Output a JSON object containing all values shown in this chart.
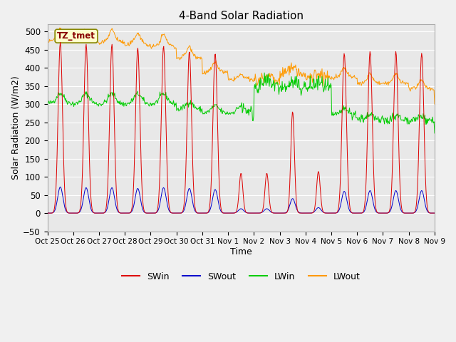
{
  "title": "4-Band Solar Radiation",
  "xlabel": "Time",
  "ylabel": "Solar Radiation (W/m2)",
  "ylim": [
    -50,
    520
  ],
  "xlim": [
    0,
    15
  ],
  "fig_bg_color": "#f0f0f0",
  "plot_bg_color": "#e8e8e8",
  "colors": {
    "SWin": "#dd0000",
    "SWout": "#0000cc",
    "LWin": "#00cc00",
    "LWout": "#ff9900"
  },
  "tick_labels": [
    "Oct 25",
    "Oct 26",
    "Oct 27",
    "Oct 28",
    "Oct 29",
    "Oct 30",
    "Oct 31",
    "Nov 1",
    "Nov 2",
    "Nov 3",
    "Nov 4",
    "Nov 5",
    "Nov 6",
    "Nov 7",
    "Nov 8",
    "Nov 9"
  ],
  "label_box": "TZ_tmet",
  "yticks": [
    -50,
    0,
    50,
    100,
    150,
    200,
    250,
    300,
    350,
    400,
    450,
    500
  ],
  "grid_color": "#ffffff",
  "figsize": [
    6.4,
    4.8
  ],
  "dpi": 100
}
